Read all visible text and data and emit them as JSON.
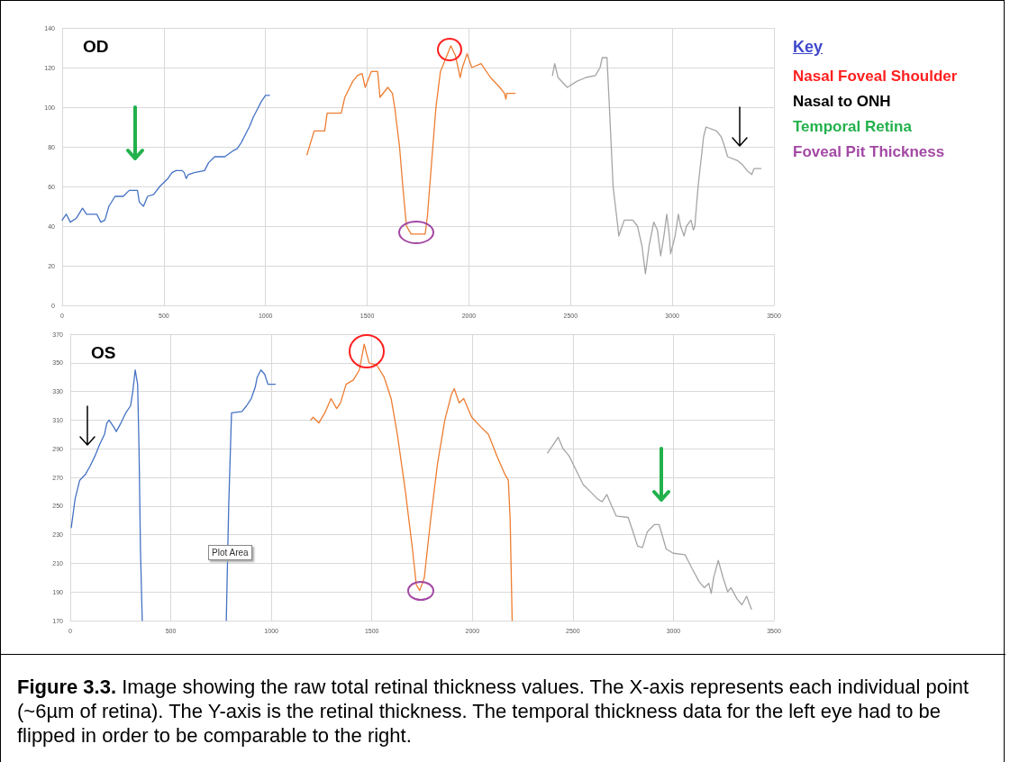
{
  "chart_data": [
    {
      "type": "line",
      "title": "OD",
      "xlim": [
        0,
        3500
      ],
      "xticks": [
        0,
        500,
        1000,
        1500,
        2000,
        2500,
        3000,
        3500
      ],
      "ylim": [
        0,
        140
      ],
      "yticks": [
        0,
        20,
        40,
        60,
        80,
        100,
        120,
        140
      ],
      "grid": true,
      "marker": "none",
      "series": [
        {
          "color": "#4472c4",
          "x": [
            0,
            20,
            40,
            70,
            100,
            120,
            170,
            190,
            210,
            230,
            260,
            300,
            330,
            370,
            380,
            400,
            420,
            450,
            480,
            520,
            540,
            560,
            590,
            600,
            610,
            620,
            650,
            700,
            720,
            750,
            800,
            840,
            860,
            880,
            900,
            920,
            940,
            960,
            980,
            1000,
            1020
          ],
          "values": [
            43,
            46,
            42,
            44,
            49,
            46,
            46,
            42,
            43,
            50,
            55,
            55,
            58,
            58,
            52,
            50,
            55,
            56,
            60,
            64,
            67,
            68,
            68,
            67,
            64,
            66,
            67,
            68,
            72,
            75,
            75,
            78,
            79,
            82,
            86,
            90,
            95,
            99,
            103,
            106,
            106
          ]
        },
        {
          "color": "#ed7d31",
          "x": [
            1204,
            1239,
            1291,
            1303,
            1372,
            1390,
            1429,
            1452,
            1475,
            1490,
            1520,
            1551,
            1563,
            1601,
            1624,
            1635,
            1659,
            1675,
            1693,
            1716,
            1785,
            1796,
            1815,
            1838,
            1860,
            1888,
            1911,
            1934,
            1957,
            1968,
            1991,
            2014,
            2060,
            2106,
            2152,
            2175,
            2182,
            2186,
            2227
          ],
          "values": [
            76,
            88,
            88,
            97,
            97,
            105,
            113,
            116,
            117,
            110,
            118,
            118,
            105,
            110,
            107,
            100,
            80,
            60,
            40,
            36,
            36,
            45,
            70,
            100,
            118,
            125,
            131,
            126,
            115,
            120,
            127,
            120,
            122,
            115,
            110,
            107,
            104,
            107,
            107
          ]
        },
        {
          "color": "#a5a5a5",
          "x": [
            2411,
            2422,
            2438,
            2484,
            2530,
            2576,
            2622,
            2645,
            2656,
            2679,
            2691,
            2709,
            2732,
            2737,
            2764,
            2806,
            2829,
            2851,
            2868,
            2886,
            2909,
            2927,
            2943,
            2959,
            2973,
            2986,
            2992,
            3014,
            3030,
            3041,
            3058,
            3070,
            3092,
            3104,
            3111,
            3127,
            3154,
            3166,
            3218,
            3241,
            3258,
            3272,
            3322,
            3345,
            3368,
            3391,
            3402,
            3436
          ],
          "values": [
            116,
            122,
            115,
            110,
            113,
            115,
            116,
            120,
            125,
            125,
            100,
            60,
            40,
            35,
            43,
            43,
            40,
            30,
            16,
            30,
            42,
            38,
            25,
            35,
            46,
            35,
            26,
            35,
            46,
            40,
            35,
            40,
            43,
            38,
            40,
            60,
            85,
            90,
            88,
            85,
            80,
            75,
            73,
            71,
            68,
            66,
            69,
            69
          ]
        }
      ]
    },
    {
      "type": "line",
      "title": "OS",
      "xlim": [
        0,
        3500
      ],
      "xticks": [
        0,
        500,
        1000,
        1500,
        2000,
        2500,
        3000,
        3500
      ],
      "ylim": [
        170,
        370
      ],
      "yticks": [
        170,
        190,
        210,
        230,
        250,
        270,
        290,
        310,
        330,
        350,
        370
      ],
      "grid": true,
      "marker": "none",
      "series": [
        {
          "color": "#4472c4",
          "x": [
            5,
            24,
            47,
            75,
            99,
            123,
            146,
            170,
            182,
            193,
            217,
            229,
            252,
            276,
            300,
            311,
            323,
            335,
            342,
            349,
            358,
            560,
            776,
            788,
            802,
            854,
            877,
            900,
            920,
            930,
            948,
            967,
            983,
            1019
          ],
          "values": [
            235,
            255,
            268,
            272,
            278,
            285,
            293,
            300,
            308,
            310,
            305,
            302,
            308,
            315,
            320,
            330,
            345,
            335,
            290,
            220,
            170,
            null,
            170,
            250,
            315,
            316,
            320,
            325,
            333,
            340,
            345,
            342,
            335,
            335
          ]
        },
        {
          "color": "#ed7d31",
          "x": [
            1196,
            1208,
            1236,
            1266,
            1297,
            1325,
            1344,
            1372,
            1408,
            1438,
            1462,
            1486,
            1526,
            1561,
            1596,
            1627,
            1667,
            1702,
            1721,
            1738,
            1761,
            1792,
            1827,
            1863,
            1896,
            1910,
            1934,
            1957,
            1997,
            2044,
            2080,
            2122,
            2162,
            2179,
            2188,
            2198
          ],
          "values": [
            310,
            312,
            308,
            315,
            325,
            318,
            322,
            335,
            338,
            345,
            363,
            350,
            348,
            340,
            325,
            300,
            260,
            220,
            195,
            191,
            200,
            240,
            280,
            310,
            328,
            332,
            322,
            325,
            312,
            305,
            300,
            285,
            272,
            268,
            240,
            170
          ]
        },
        {
          "color": "#a5a5a5",
          "x": [
            2374,
            2398,
            2427,
            2451,
            2481,
            2516,
            2551,
            2587,
            2622,
            2645,
            2669,
            2693,
            2716,
            2775,
            2799,
            2822,
            2846,
            2870,
            2905,
            2929,
            2964,
            2999,
            3058,
            3094,
            3129,
            3153,
            3176,
            3188,
            3200,
            3223,
            3247,
            3270,
            3286,
            3317,
            3341,
            3364,
            3388
          ],
          "values": [
            287,
            292,
            298,
            290,
            285,
            275,
            265,
            260,
            255,
            253,
            258,
            250,
            243,
            242,
            232,
            222,
            221,
            232,
            237,
            237,
            220,
            217,
            216,
            206,
            197,
            193,
            196,
            189,
            200,
            212,
            200,
            190,
            193,
            185,
            181,
            187,
            178
          ]
        }
      ],
      "annotations": [
        "Plot Area",
        "Figure 3.3. Image showing the raw total retinal thickness values. The X-axis represents each individual point (~6µm of retina). The Y-axis is the retinal thickness. The temporal thickness data for the left eye had to be flipped in order to be comparable to the right."
      ]
    },
    {
      "type": "other",
      "title": "Key",
      "annotations": [
        "Nasal Foveal Shoulder",
        "Nasal to ONH",
        "Temporal Retina",
        "Foveal Pit Thickness"
      ]
    }
  ]
}
